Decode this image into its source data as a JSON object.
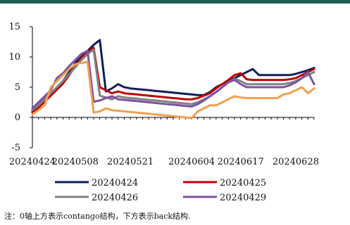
{
  "note": "注：0轴上方表示contango结构，下方表示back结构.",
  "chart_data": {
    "type": "line",
    "title": "",
    "xlabel": "",
    "ylabel": "",
    "x": [
      "20240424",
      "20240425",
      "20240426",
      "20240429",
      "20240430",
      "20240506",
      "20240507",
      "20240508",
      "20240509",
      "20240510",
      "20240513",
      "20240514",
      "20240515",
      "20240516",
      "20240517",
      "20240520",
      "20240521",
      "20240522",
      "20240523",
      "20240524",
      "20240527",
      "20240528",
      "20240529",
      "20240530",
      "20240531",
      "20240603",
      "20240604",
      "20240605",
      "20240606",
      "20240607",
      "20240611",
      "20240612",
      "20240613",
      "20240614",
      "20240617",
      "20240618",
      "20240619",
      "20240620",
      "20240621",
      "20240624",
      "20240625",
      "20240626",
      "20240627",
      "20240628",
      "20240701",
      "20240702",
      "20240703"
    ],
    "xticks": [
      "20240424",
      "20240508",
      "20240521",
      "20240604",
      "20240617",
      "20240628"
    ],
    "ylim": [
      -5,
      15
    ],
    "yticks": [
      -5,
      0,
      5,
      10,
      15
    ],
    "series": [
      {
        "name": "20240424",
        "color": "#0d1f5c",
        "values": [
          1.0,
          2.0,
          3.0,
          4.0,
          4.8,
          6.0,
          7.5,
          9.0,
          10.0,
          11.0,
          12.0,
          12.8,
          4.3,
          4.8,
          5.5,
          5.0,
          4.8,
          4.7,
          4.6,
          4.5,
          4.4,
          4.3,
          4.2,
          4.1,
          4.0,
          3.9,
          3.8,
          3.7,
          3.7,
          4.2,
          5.0,
          5.5,
          6.0,
          6.5,
          7.0,
          7.5,
          8.0,
          7.0,
          7.0,
          7.0,
          7.0,
          7.0,
          7.0,
          7.2,
          7.5,
          7.8,
          8.2
        ]
      },
      {
        "name": "20240425",
        "color": "#c00000",
        "values": [
          0.8,
          1.6,
          2.6,
          3.6,
          4.6,
          5.6,
          7.0,
          8.5,
          9.8,
          10.8,
          11.5,
          5.0,
          4.5,
          4.0,
          4.3,
          4.0,
          3.9,
          3.8,
          3.7,
          3.6,
          3.5,
          3.4,
          3.3,
          3.2,
          3.1,
          3.0,
          3.0,
          3.2,
          3.6,
          4.0,
          4.8,
          5.5,
          6.2,
          7.0,
          7.3,
          6.3,
          6.2,
          6.2,
          6.2,
          6.2,
          6.2,
          6.2,
          6.3,
          6.5,
          7.0,
          7.5,
          8.0
        ]
      },
      {
        "name": "20240426",
        "color": "#808080",
        "values": [
          1.2,
          2.0,
          3.0,
          4.0,
          5.0,
          6.0,
          7.2,
          8.3,
          9.5,
          10.5,
          11.2,
          3.6,
          3.3,
          3.0,
          3.5,
          3.3,
          3.2,
          3.1,
          3.0,
          2.9,
          2.8,
          2.7,
          2.6,
          2.5,
          2.4,
          2.3,
          2.2,
          2.5,
          3.0,
          3.5,
          4.2,
          5.0,
          5.8,
          6.4,
          6.0,
          5.5,
          5.5,
          5.5,
          5.5,
          5.5,
          5.5,
          5.5,
          5.7,
          6.0,
          6.5,
          7.0,
          7.5
        ]
      },
      {
        "name": "20240429",
        "color": "#7b52a3",
        "values": [
          1.5,
          2.5,
          3.5,
          4.5,
          6.5,
          7.3,
          8.5,
          9.5,
          10.5,
          11.0,
          2.6,
          2.8,
          3.2,
          3.5,
          3.0,
          2.9,
          2.8,
          2.7,
          2.6,
          2.5,
          2.4,
          2.3,
          2.2,
          2.1,
          2.0,
          1.9,
          1.8,
          2.2,
          2.8,
          3.5,
          4.2,
          5.0,
          5.8,
          6.2,
          5.5,
          5.0,
          5.0,
          5.0,
          5.0,
          5.0,
          5.0,
          5.0,
          5.3,
          5.8,
          6.5,
          7.5,
          5.5
        ]
      },
      {
        "name": "",
        "color": "#f0a050",
        "values": [
          0.5,
          1.2,
          2.0,
          5.0,
          6.0,
          7.0,
          8.0,
          8.8,
          9.0,
          9.2,
          0.8,
          1.0,
          1.5,
          1.2,
          1.1,
          1.0,
          0.9,
          0.8,
          0.7,
          0.6,
          0.5,
          0.4,
          0.3,
          0.2,
          0.1,
          0.0,
          -0.1,
          1.0,
          1.5,
          2.0,
          2.0,
          2.5,
          3.0,
          3.5,
          3.3,
          3.2,
          3.2,
          3.2,
          3.2,
          3.2,
          3.2,
          3.8,
          4.0,
          4.5,
          5.0,
          4.0,
          4.8
        ]
      }
    ],
    "legend": {
      "placement": "bottom",
      "columns": 2,
      "entries": [
        "20240424",
        "20240425",
        "20240426",
        "20240429"
      ]
    }
  }
}
